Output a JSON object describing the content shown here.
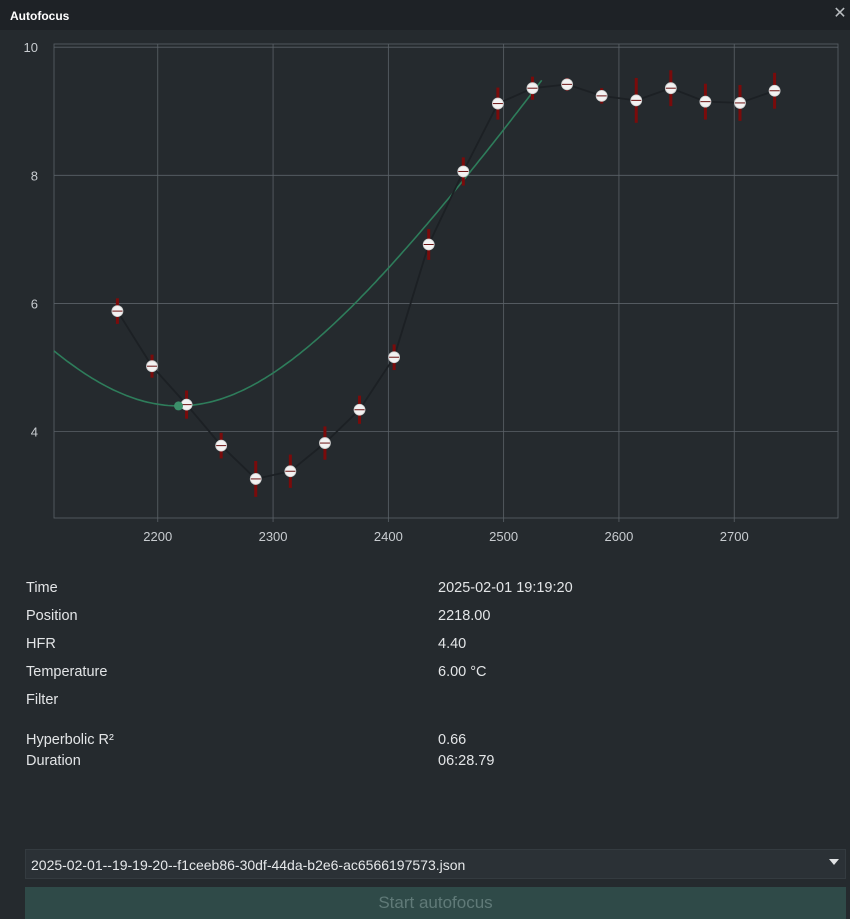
{
  "window": {
    "title": "Autofocus",
    "close_icon": "close-icon"
  },
  "chart_data": {
    "type": "scatter",
    "title": "",
    "xlabel": "",
    "ylabel": "",
    "xlim": [
      2110,
      2790
    ],
    "ylim": [
      2.65,
      10.05
    ],
    "x_ticks": [
      2200,
      2300,
      2400,
      2500,
      2600,
      2700
    ],
    "y_ticks": [
      4,
      6,
      8,
      10
    ],
    "grid": true,
    "colors": {
      "grid": "#5b6268",
      "axis_text": "#c8ccd0",
      "line": "#1c2024",
      "marker_fill": "#f2f2f2",
      "error_bar": "#7a0b0b",
      "fit_curve": "#2e7d5b",
      "focus_point": "#3c8f6a"
    },
    "series": [
      {
        "points": [
          {
            "x": 2165,
            "y": 5.88,
            "err": 0.2
          },
          {
            "x": 2195,
            "y": 5.02,
            "err": 0.18
          },
          {
            "x": 2225,
            "y": 4.42,
            "err": 0.22
          },
          {
            "x": 2255,
            "y": 3.78,
            "err": 0.2
          },
          {
            "x": 2285,
            "y": 3.26,
            "err": 0.28
          },
          {
            "x": 2315,
            "y": 3.38,
            "err": 0.26
          },
          {
            "x": 2345,
            "y": 3.82,
            "err": 0.26
          },
          {
            "x": 2375,
            "y": 4.34,
            "err": 0.22
          },
          {
            "x": 2405,
            "y": 5.16,
            "err": 0.2
          },
          {
            "x": 2435,
            "y": 6.92,
            "err": 0.24
          },
          {
            "x": 2465,
            "y": 8.06,
            "err": 0.22
          },
          {
            "x": 2495,
            "y": 9.12,
            "err": 0.25
          },
          {
            "x": 2525,
            "y": 9.36,
            "err": 0.18
          },
          {
            "x": 2555,
            "y": 9.42,
            "err": 0.1
          },
          {
            "x": 2585,
            "y": 9.24,
            "err": 0.12
          },
          {
            "x": 2615,
            "y": 9.17,
            "err": 0.35
          },
          {
            "x": 2645,
            "y": 9.36,
            "err": 0.28
          },
          {
            "x": 2675,
            "y": 9.15,
            "err": 0.28
          },
          {
            "x": 2705,
            "y": 9.13,
            "err": 0.28
          },
          {
            "x": 2735,
            "y": 9.32,
            "err": 0.28
          }
        ]
      }
    ],
    "fit_curve": {
      "type": "hyperbolic",
      "min_x": 2218,
      "min_y": 4.4,
      "x_range": [
        2110,
        2535
      ]
    },
    "focus_point": {
      "x": 2218,
      "y": 4.4
    }
  },
  "info": {
    "rows": [
      {
        "label": "Time",
        "value": "2025-02-01 19:19:20"
      },
      {
        "label": "Position",
        "value": "2218.00"
      },
      {
        "label": "HFR",
        "value": "4.40"
      },
      {
        "label": "Temperature",
        "value": "6.00 °C"
      },
      {
        "label": "Filter",
        "value": ""
      },
      {
        "label": "Hyperbolic R²",
        "value": "0.66"
      },
      {
        "label": "Duration",
        "value": "06:28.79"
      }
    ]
  },
  "selector": {
    "selected": "2025-02-01--19-19-20--f1ceeb86-30df-44da-b2e6-ac6566197573.json",
    "arrow_icon": "chevron-down-icon"
  },
  "actions": {
    "start_label": "Start autofocus"
  }
}
